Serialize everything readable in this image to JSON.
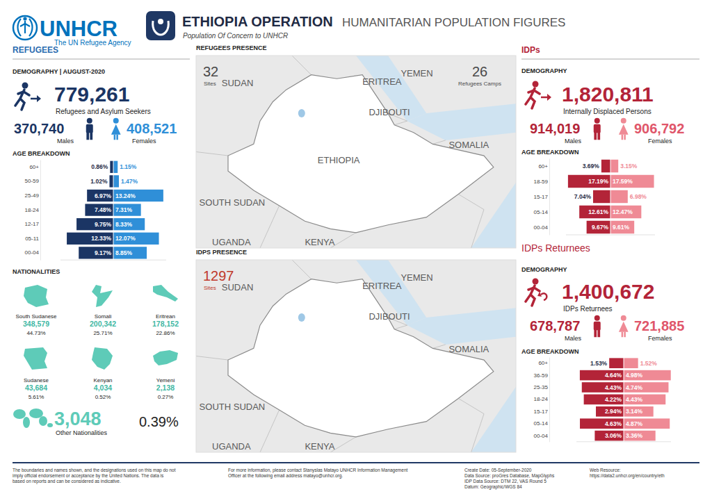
{
  "header": {
    "logo_text": "UNHCR",
    "logo_subtitle": "The UN Refugee Agency",
    "title": "ETHIOPIA OPERATION",
    "subtitle": "HUMANITARIAN POPULATION FIGURES",
    "tagline": "Population Of Concern to UNHCR"
  },
  "refugees": {
    "section": "REFUGEES",
    "demography_title": "DEMOGRAPHY | AUGUST-2020",
    "total": "779,261",
    "total_label": "Refugees and Asylum Seekers",
    "males": "370,740",
    "females": "408,521",
    "nationalities_title": "NATIONALITIES",
    "nationalities": [
      {
        "name": "South Sudanese",
        "count": "348,579",
        "percent": "44.73%"
      },
      {
        "name": "Somali",
        "count": "200,342",
        "percent": "25.71%"
      },
      {
        "name": "Eritrean",
        "count": "178,152",
        "percent": "22.86%"
      },
      {
        "name": "Sudanese",
        "count": "43,684",
        "percent": "5.61%"
      },
      {
        "name": "Kenyan",
        "count": "4,034",
        "percent": "0.52%"
      },
      {
        "name": "Yemeni",
        "count": "2,138",
        "percent": "0.27%"
      }
    ],
    "other": {
      "count": "3,048",
      "label": "Other Nationalities",
      "percent": "0.39%"
    }
  },
  "idps": {
    "section": "IDPs",
    "demography_title": "DEMOGRAPHY",
    "total": "1,820,811",
    "total_label": "Internally Displaced Persons",
    "males": "914,019",
    "females": "906,792"
  },
  "returnees": {
    "section": "IDPs Returnees",
    "demography_title": "DEMOGRAPHY",
    "total": "1,400,672",
    "total_label": "IDPs Returnees",
    "males": "678,787",
    "females": "721,885"
  },
  "maps": [
    {
      "title": "REFUGEES PRESENCE",
      "counts": [
        {
          "value": "32",
          "label": "Sites"
        },
        {
          "value": "26",
          "label": "Refugees Camps"
        }
      ],
      "countries": [
        "SUDAN",
        "ERITREA",
        "YEMEN",
        "DJIBOUTI",
        "SOMALIA",
        "SOUTH SUDAN",
        "UGANDA",
        "KENYA",
        "ETHIOPIA"
      ]
    },
    {
      "title": "IDPS PRESENCE",
      "counts": [
        {
          "value": "1297",
          "label": "Sites"
        }
      ],
      "countries": [
        "SUDAN",
        "ERITREA",
        "YEMEN",
        "DJIBOUTI",
        "SOMALIA",
        "SOUTH SUDAN",
        "UGANDA",
        "KENYA"
      ]
    }
  ],
  "footer": {
    "disclaimer": [
      "The boundaries and names shown, and the designations used on this map do not",
      "imply official endorsement or acceptance by the United Nations. The data is",
      "based on reports and can be considered as indicative."
    ],
    "contact": [
      "For more information, please contact Stanyslas Matayo UNHCR Information Management",
      "Officer at the following email address matayo@unhcr.org."
    ],
    "meta": [
      "Create Date: 05-September-2020",
      "Data Source: proGres Database, MapGlyphs",
      "IDP Data Source: DTM 22, VAS Round 5",
      "Datum: Geographic/WGS 84"
    ],
    "web_label": "Web Resource:",
    "web_url": "https://data2.unhcr.org/en/country/eth"
  },
  "chart_data": [
    {
      "type": "bar",
      "orientation": "horizontal",
      "title": "AGE BREAKDOWN",
      "categories": [
        "60+",
        "50-59",
        "25-49",
        "18-24",
        "12-17",
        "05-11",
        "00-04"
      ],
      "series": [
        {
          "name": "Males",
          "color": "#1b3564",
          "values": [
            0.86,
            1.02,
            6.97,
            7.48,
            9.75,
            12.33,
            9.17
          ],
          "value_labels": [
            "0.86%",
            "1.02%",
            "6.97%",
            "7.48%",
            "9.75%",
            "12.33%",
            "9.17%"
          ]
        },
        {
          "name": "Females",
          "color": "#2f8fd8",
          "values": [
            1.15,
            1.47,
            13.24,
            7.31,
            8.33,
            12.07,
            8.85
          ],
          "value_labels": [
            "1.15%",
            "1.47%",
            "13.24%",
            "7.31%",
            "8.33%",
            "12.07%",
            "8.85%"
          ]
        }
      ],
      "xlim": [
        0,
        14
      ],
      "data_labels": true,
      "tick_labels": "y"
    },
    {
      "type": "bar",
      "orientation": "horizontal",
      "title": "AGE BREAKDOWN",
      "categories": [
        "60+",
        "18-59",
        "15-17",
        "05-14",
        "00-04"
      ],
      "series": [
        {
          "name": "Males",
          "color": "#b32438",
          "values": [
            3.69,
            17.19,
            7.04,
            12.61,
            9.67
          ],
          "value_labels": [
            "3.69%",
            "17.19%",
            "7.04%",
            "12.61%",
            "9.67%"
          ]
        },
        {
          "name": "Females",
          "color": "#ef8a95",
          "values": [
            3.15,
            17.59,
            6.98,
            12.47,
            9.61
          ],
          "value_labels": [
            "3.15%",
            "17.59%",
            "6.98%",
            "12.47%",
            "9.61%"
          ]
        }
      ],
      "xlim": [
        0,
        18
      ],
      "data_labels": true,
      "tick_labels": "y"
    },
    {
      "type": "bar",
      "orientation": "horizontal",
      "title": "AGE BREAKDOWN",
      "categories": [
        "60+",
        "36-59",
        "25-35",
        "18-24",
        "15-17",
        "05-14",
        "00-04"
      ],
      "series": [
        {
          "name": "Males",
          "color": "#b32438",
          "values": [
            1.53,
            4.64,
            4.43,
            4.22,
            2.94,
            4.63,
            3.06
          ],
          "value_labels": [
            "1.53%",
            "4.64%",
            "4.43%",
            "4.22%",
            "2.94%",
            "4.63%",
            "3.06%"
          ]
        },
        {
          "name": "Females",
          "color": "#ef8a95",
          "values": [
            1.52,
            4.98,
            4.74,
            4.43,
            3.14,
            4.87,
            3.36
          ],
          "value_labels": [
            "1.52%",
            "4.98%",
            "4.74%",
            "4.43%",
            "3.14%",
            "4.87%",
            "3.36%"
          ]
        }
      ],
      "xlim": [
        0,
        5
      ],
      "data_labels": true,
      "tick_labels": "y"
    }
  ]
}
